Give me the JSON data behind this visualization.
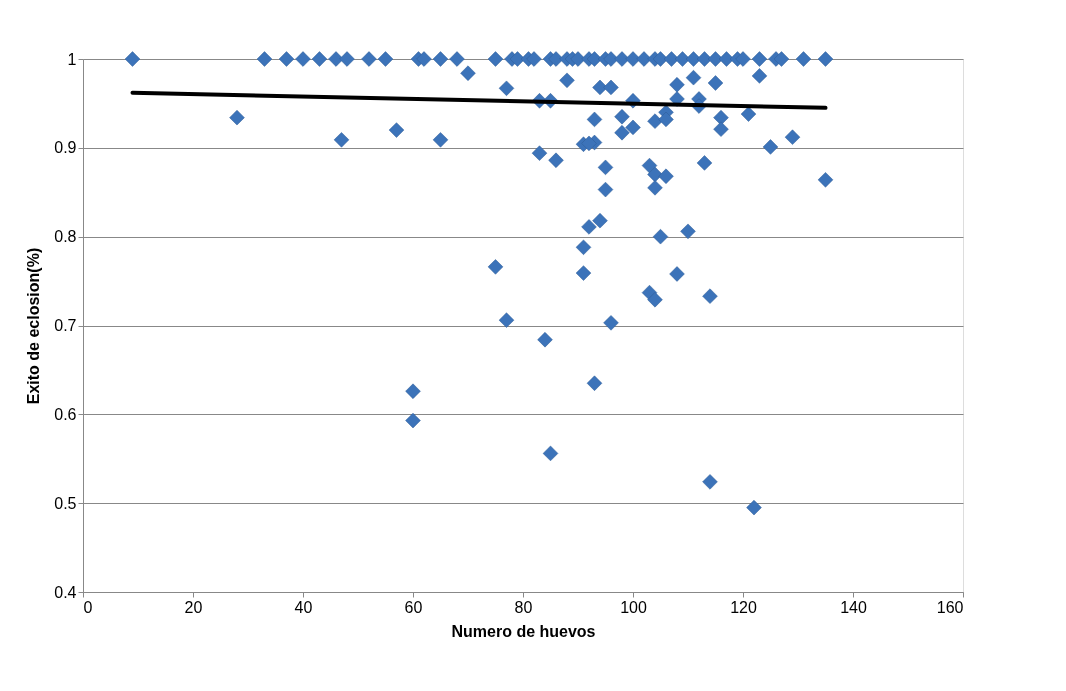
{
  "chart_data": {
    "type": "scatter",
    "xlabel": "Numero de huevos",
    "ylabel": "Exito de eclosion(%)",
    "xlim": [
      0,
      160
    ],
    "xticks": [
      0,
      20,
      40,
      60,
      80,
      100,
      120,
      140,
      160
    ],
    "ylim": [
      0.4,
      1
    ],
    "yticks": [
      0.4,
      0.5,
      0.6,
      0.7,
      0.8,
      0.9,
      1
    ],
    "grid": "y",
    "marker": "diamond",
    "series": [
      {
        "color": "#3c73b9",
        "x": [
          9,
          33,
          37,
          40,
          43,
          46,
          48,
          52,
          55,
          61,
          62,
          65,
          68,
          75,
          78,
          79,
          81,
          82,
          85,
          86,
          88,
          89,
          90,
          92,
          93,
          95,
          96,
          98,
          100,
          102,
          104,
          105,
          107,
          109,
          111,
          113,
          115,
          117,
          119,
          120,
          123,
          126,
          127,
          131,
          135,
          28,
          47,
          57,
          65,
          70,
          77,
          83,
          85,
          88,
          94,
          96,
          93,
          98,
          100,
          100,
          98,
          104,
          106,
          108,
          111,
          112,
          112,
          115,
          116,
          116,
          121,
          123,
          108,
          106,
          91,
          93,
          92,
          83,
          86,
          125,
          129,
          95,
          95,
          103,
          104,
          106,
          104,
          113,
          135,
          92,
          94,
          91,
          75,
          91,
          105,
          110,
          108,
          103,
          104,
          114,
          77,
          96,
          84,
          93,
          85,
          114,
          122,
          60,
          60
        ],
        "values": [
          1,
          1,
          1,
          1,
          1,
          1,
          1,
          1,
          1,
          1,
          1,
          1,
          1,
          1,
          1,
          1,
          1,
          1,
          1,
          1,
          1,
          1,
          1,
          1,
          1,
          1,
          1,
          1,
          1,
          1,
          1,
          1,
          1,
          1,
          1,
          1,
          1,
          1,
          1,
          1,
          1,
          1,
          1,
          1,
          1,
          0.934,
          0.909,
          0.92,
          0.909,
          0.984,
          0.967,
          0.953,
          0.953,
          0.976,
          0.968,
          0.968,
          0.932,
          0.935,
          0.953,
          0.923,
          0.917,
          0.93,
          0.94,
          0.971,
          0.979,
          0.955,
          0.947,
          0.973,
          0.934,
          0.921,
          0.938,
          0.981,
          0.955,
          0.932,
          0.904,
          0.906,
          0.905,
          0.894,
          0.886,
          0.901,
          0.912,
          0.878,
          0.853,
          0.88,
          0.87,
          0.868,
          0.855,
          0.883,
          0.864,
          0.811,
          0.818,
          0.788,
          0.766,
          0.759,
          0.8,
          0.806,
          0.758,
          0.737,
          0.729,
          0.733,
          0.706,
          0.703,
          0.684,
          0.635,
          0.556,
          0.524,
          0.495,
          0.626,
          0.593
        ]
      },
      {
        "type": "line",
        "color": "#000000",
        "marker": "none",
        "line_style": "solid",
        "x": [
          9,
          135
        ],
        "values": [
          0.962,
          0.945
        ]
      }
    ]
  }
}
